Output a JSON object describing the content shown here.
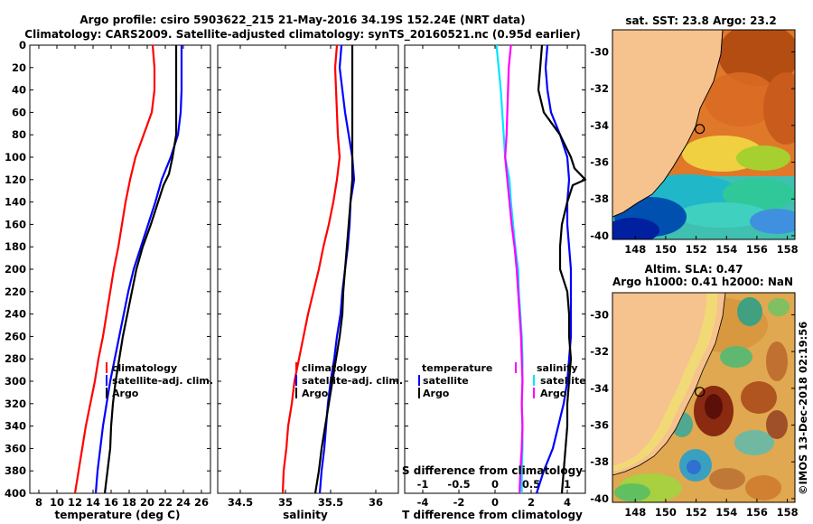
{
  "title_line1": "Argo profile: csiro 5903622_215 21-May-2016 34.19S 152.24E (NRT data)",
  "title_line2": "Climatology: CARS2009. Satellite-adjusted climatology: synTS_20160521.nc (0.95d earlier)",
  "depth_ticks": [
    "0",
    "20",
    "40",
    "60",
    "80",
    "100",
    "120",
    "140",
    "160",
    "180",
    "200",
    "220",
    "240",
    "260",
    "280",
    "300",
    "320",
    "340",
    "360",
    "380",
    "400"
  ],
  "colors": {
    "climatology": "#ff0000",
    "satellite": "#0000ff",
    "argo": "#000000",
    "cyan": "#00e5ff",
    "magenta": "#ff00ff",
    "land": "#f6c28e"
  },
  "chart_data": [
    {
      "type": "line",
      "id": "temperature",
      "xlabel": "temperature (deg C)",
      "ylabel": "depth",
      "xlim": [
        7,
        27
      ],
      "ylim": [
        400,
        0
      ],
      "xticks": [
        8,
        10,
        12,
        14,
        16,
        18,
        20,
        22,
        24,
        26
      ],
      "xtick_labels": [
        "8",
        "10",
        "12",
        "14",
        "16",
        "18",
        "20",
        "22",
        "24",
        "26"
      ],
      "legend": [
        "climatology",
        "satellite-adj. clim.",
        "Argo"
      ],
      "series": [
        {
          "name": "climatology",
          "color": "#ff0000",
          "points": [
            [
              20.6,
              0
            ],
            [
              20.8,
              20
            ],
            [
              20.8,
              40
            ],
            [
              20.5,
              60
            ],
            [
              19.6,
              80
            ],
            [
              18.7,
              100
            ],
            [
              18.1,
              120
            ],
            [
              17.6,
              140
            ],
            [
              17.2,
              160
            ],
            [
              16.8,
              180
            ],
            [
              16.3,
              200
            ],
            [
              15.9,
              220
            ],
            [
              15.5,
              240
            ],
            [
              15.1,
              260
            ],
            [
              14.6,
              280
            ],
            [
              14.2,
              300
            ],
            [
              13.7,
              320
            ],
            [
              13.2,
              340
            ],
            [
              12.8,
              360
            ],
            [
              12.4,
              380
            ],
            [
              12.0,
              400
            ]
          ]
        },
        {
          "name": "satellite-adj. clim.",
          "color": "#0000ff",
          "points": [
            [
              23.8,
              0
            ],
            [
              23.8,
              20
            ],
            [
              23.8,
              40
            ],
            [
              23.7,
              60
            ],
            [
              23.4,
              80
            ],
            [
              22.6,
              100
            ],
            [
              21.6,
              120
            ],
            [
              20.9,
              140
            ],
            [
              20.1,
              160
            ],
            [
              19.3,
              180
            ],
            [
              18.5,
              200
            ],
            [
              17.9,
              220
            ],
            [
              17.4,
              240
            ],
            [
              16.9,
              260
            ],
            [
              16.4,
              280
            ],
            [
              15.9,
              300
            ],
            [
              15.5,
              320
            ],
            [
              15.1,
              340
            ],
            [
              14.8,
              360
            ],
            [
              14.5,
              380
            ],
            [
              14.3,
              400
            ]
          ]
        },
        {
          "name": "Argo",
          "color": "#000000",
          "points": [
            [
              23.2,
              0
            ],
            [
              23.2,
              20
            ],
            [
              23.2,
              40
            ],
            [
              23.2,
              60
            ],
            [
              23.2,
              80
            ],
            [
              22.8,
              100
            ],
            [
              22.4,
              115
            ],
            [
              21.8,
              125
            ],
            [
              21.2,
              140
            ],
            [
              20.4,
              160
            ],
            [
              19.5,
              180
            ],
            [
              18.8,
              200
            ],
            [
              18.3,
              220
            ],
            [
              17.8,
              240
            ],
            [
              17.3,
              260
            ],
            [
              16.9,
              280
            ],
            [
              16.5,
              300
            ],
            [
              16.2,
              320
            ],
            [
              16.0,
              340
            ],
            [
              15.9,
              360
            ],
            [
              15.6,
              380
            ],
            [
              15.3,
              400
            ]
          ]
        }
      ]
    },
    {
      "type": "line",
      "id": "salinity",
      "xlabel": "salinity",
      "ylabel": "depth",
      "xlim": [
        34.25,
        36.25
      ],
      "ylim": [
        400,
        0
      ],
      "xticks": [
        34.5,
        35,
        35.5,
        36
      ],
      "xtick_labels": [
        "34.5",
        "35",
        "35.5",
        "36"
      ],
      "legend": [
        "climatology",
        "satellite-adj. clim.",
        "Argo"
      ],
      "series": [
        {
          "name": "climatology",
          "color": "#ff0000",
          "points": [
            [
              35.57,
              0
            ],
            [
              35.55,
              20
            ],
            [
              35.56,
              40
            ],
            [
              35.57,
              60
            ],
            [
              35.58,
              80
            ],
            [
              35.6,
              100
            ],
            [
              35.57,
              120
            ],
            [
              35.53,
              140
            ],
            [
              35.48,
              160
            ],
            [
              35.42,
              180
            ],
            [
              35.37,
              200
            ],
            [
              35.31,
              220
            ],
            [
              35.25,
              240
            ],
            [
              35.2,
              260
            ],
            [
              35.15,
              280
            ],
            [
              35.1,
              300
            ],
            [
              35.07,
              320
            ],
            [
              35.03,
              340
            ],
            [
              35.01,
              360
            ],
            [
              34.98,
              380
            ],
            [
              34.97,
              400
            ]
          ]
        },
        {
          "name": "satellite-adj. clim.",
          "color": "#0000ff",
          "points": [
            [
              35.62,
              0
            ],
            [
              35.6,
              20
            ],
            [
              35.63,
              40
            ],
            [
              35.66,
              60
            ],
            [
              35.7,
              80
            ],
            [
              35.74,
              100
            ],
            [
              35.76,
              120
            ],
            [
              35.72,
              140
            ],
            [
              35.71,
              160
            ],
            [
              35.69,
              180
            ],
            [
              35.66,
              200
            ],
            [
              35.63,
              220
            ],
            [
              35.61,
              240
            ],
            [
              35.57,
              260
            ],
            [
              35.54,
              280
            ],
            [
              35.5,
              300
            ],
            [
              35.47,
              320
            ],
            [
              35.45,
              340
            ],
            [
              35.43,
              360
            ],
            [
              35.4,
              380
            ],
            [
              35.38,
              400
            ]
          ]
        },
        {
          "name": "Argo",
          "color": "#000000",
          "points": [
            [
              35.74,
              0
            ],
            [
              35.74,
              20
            ],
            [
              35.74,
              40
            ],
            [
              35.74,
              60
            ],
            [
              35.74,
              80
            ],
            [
              35.74,
              100
            ],
            [
              35.74,
              120
            ],
            [
              35.72,
              140
            ],
            [
              35.7,
              160
            ],
            [
              35.68,
              180
            ],
            [
              35.66,
              200
            ],
            [
              35.64,
              220
            ],
            [
              35.63,
              240
            ],
            [
              35.6,
              260
            ],
            [
              35.56,
              280
            ],
            [
              35.52,
              300
            ],
            [
              35.48,
              320
            ],
            [
              35.44,
              340
            ],
            [
              35.4,
              360
            ],
            [
              35.37,
              380
            ],
            [
              35.33,
              400
            ]
          ]
        }
      ]
    },
    {
      "type": "line",
      "id": "difference",
      "xlabel": "T difference from climatology",
      "xlabel_top": "S difference from climatology",
      "ylabel": "depth",
      "xlim": [
        -5,
        5
      ],
      "ylim": [
        400,
        0
      ],
      "xticks": [
        -4,
        -2,
        0,
        2,
        4
      ],
      "xtick_labels": [
        "-4",
        "-2",
        "0",
        "2",
        "4"
      ],
      "xticks_top": [
        -1,
        -0.5,
        0,
        0.5,
        1
      ],
      "xtick_labels_top": [
        "-1",
        "-0.5",
        "0",
        "0.5",
        "1"
      ],
      "legend_left": [
        "temperature",
        "satellite",
        "Argo"
      ],
      "legend_right": [
        "salinity",
        "satellite",
        "Argo"
      ],
      "series": [
        {
          "name": "temperature satellite",
          "color": "#0000ff",
          "points": [
            [
              2.9,
              0
            ],
            [
              2.8,
              20
            ],
            [
              2.9,
              40
            ],
            [
              3.1,
              60
            ],
            [
              3.6,
              80
            ],
            [
              4.0,
              100
            ],
            [
              4.1,
              120
            ],
            [
              4.0,
              140
            ],
            [
              4.0,
              160
            ],
            [
              4.1,
              180
            ],
            [
              4.2,
              200
            ],
            [
              4.2,
              220
            ],
            [
              4.2,
              240
            ],
            [
              4.2,
              260
            ],
            [
              4.1,
              280
            ],
            [
              4.0,
              300
            ],
            [
              3.8,
              320
            ],
            [
              3.5,
              340
            ],
            [
              3.2,
              360
            ],
            [
              2.7,
              380
            ],
            [
              2.3,
              400
            ]
          ]
        },
        {
          "name": "temperature Argo",
          "color": "#000000",
          "points": [
            [
              2.6,
              0
            ],
            [
              2.5,
              20
            ],
            [
              2.4,
              40
            ],
            [
              2.7,
              60
            ],
            [
              3.6,
              80
            ],
            [
              4.2,
              100
            ],
            [
              4.4,
              110
            ],
            [
              5.0,
              120
            ],
            [
              4.3,
              125
            ],
            [
              4.0,
              140
            ],
            [
              3.7,
              160
            ],
            [
              3.6,
              180
            ],
            [
              3.6,
              200
            ],
            [
              4.0,
              220
            ],
            [
              4.1,
              240
            ],
            [
              4.1,
              260
            ],
            [
              4.2,
              280
            ],
            [
              4.1,
              300
            ],
            [
              4.0,
              320
            ],
            [
              4.0,
              340
            ],
            [
              3.9,
              360
            ],
            [
              3.8,
              380
            ],
            [
              3.7,
              400
            ]
          ]
        },
        {
          "name": "salinity satellite",
          "color": "#00e5ff",
          "points": [
            [
              0.02,
              0
            ],
            [
              0.05,
              20
            ],
            [
              0.08,
              40
            ],
            [
              0.1,
              60
            ],
            [
              0.12,
              80
            ],
            [
              0.14,
              100
            ],
            [
              0.2,
              120
            ],
            [
              0.22,
              140
            ],
            [
              0.25,
              160
            ],
            [
              0.28,
              180
            ],
            [
              0.32,
              200
            ],
            [
              0.33,
              220
            ],
            [
              0.35,
              240
            ],
            [
              0.37,
              260
            ],
            [
              0.38,
              280
            ],
            [
              0.38,
              300
            ],
            [
              0.37,
              320
            ],
            [
              0.38,
              340
            ],
            [
              0.38,
              360
            ],
            [
              0.37,
              380
            ],
            [
              0.37,
              400
            ]
          ]
        },
        {
          "name": "salinity Argo",
          "color": "#ff00ff",
          "points": [
            [
              0.22,
              0
            ],
            [
              0.19,
              20
            ],
            [
              0.18,
              40
            ],
            [
              0.17,
              60
            ],
            [
              0.16,
              80
            ],
            [
              0.14,
              100
            ],
            [
              0.17,
              120
            ],
            [
              0.2,
              140
            ],
            [
              0.23,
              160
            ],
            [
              0.27,
              180
            ],
            [
              0.3,
              200
            ],
            [
              0.32,
              220
            ],
            [
              0.34,
              240
            ],
            [
              0.36,
              260
            ],
            [
              0.37,
              280
            ],
            [
              0.38,
              300
            ],
            [
              0.37,
              320
            ],
            [
              0.38,
              340
            ],
            [
              0.37,
              360
            ],
            [
              0.35,
              380
            ],
            [
              0.34,
              400
            ]
          ]
        }
      ]
    },
    {
      "type": "heatmap",
      "id": "sst_map",
      "title": "sat. SST: 23.8 Argo: 23.2",
      "xlim": [
        146.5,
        158.5
      ],
      "ylim": [
        -40.2,
        -28.8
      ],
      "xticks": [
        148,
        150,
        152,
        154,
        156,
        158
      ],
      "xtick_labels": [
        "148",
        "150",
        "152",
        "154",
        "156",
        "158"
      ],
      "yticks": [
        -30,
        -32,
        -34,
        -36,
        -38,
        -40
      ],
      "ytick_labels": [
        "-30",
        "-32",
        "-34",
        "-36",
        "-38",
        "-40"
      ],
      "float_position": [
        152.24,
        -34.19
      ]
    },
    {
      "type": "heatmap",
      "id": "sla_map",
      "title": "Altim. SLA: 0.47",
      "subtitle": "Argo h1000: 0.41 h2000: NaN",
      "xlim": [
        146.5,
        158.5
      ],
      "ylim": [
        -40.2,
        -28.8
      ],
      "xticks": [
        148,
        150,
        152,
        154,
        156,
        158
      ],
      "xtick_labels": [
        "148",
        "150",
        "152",
        "154",
        "156",
        "158"
      ],
      "yticks": [
        -30,
        -32,
        -34,
        -36,
        -38,
        -40
      ],
      "ytick_labels": [
        "-30",
        "-32",
        "-34",
        "-36",
        "-38",
        "-40"
      ],
      "float_position": [
        152.24,
        -34.19
      ]
    }
  ],
  "watermark": "©IMOS 13-Dec-2018 02:19:56"
}
